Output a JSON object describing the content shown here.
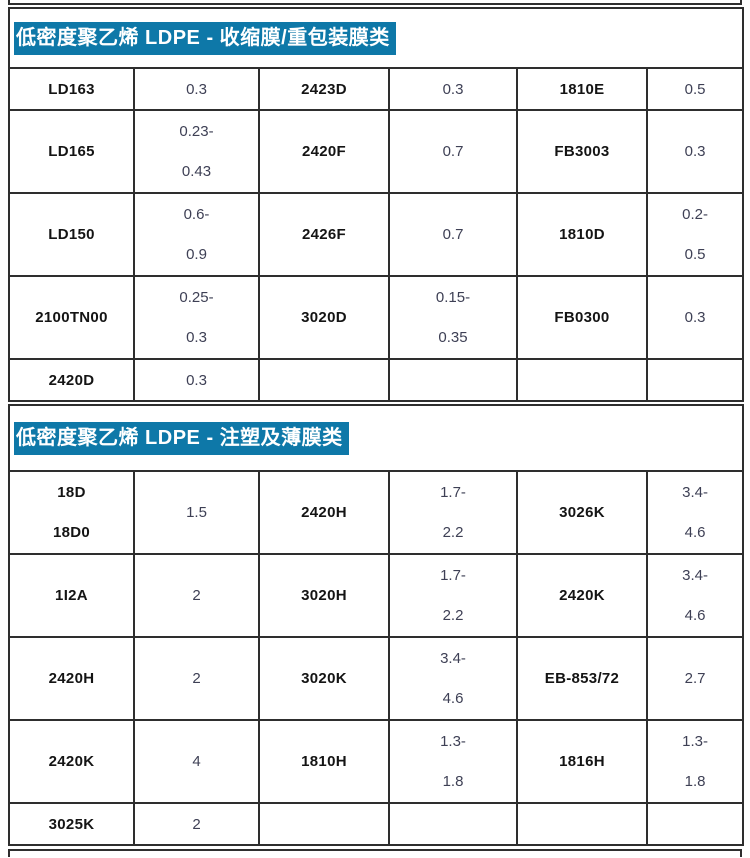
{
  "theme": {
    "highlight_color": "#0e78a8",
    "title_text_color": "#ffffff",
    "border_color": "#2e2e2e",
    "name_text_color": "#141414",
    "value_text_color": "#3e4055",
    "background": "#ffffff"
  },
  "sections": [
    {
      "title": "低密度聚乙烯  LDPE - 收缩膜/重包装膜类",
      "rows": [
        [
          {
            "type": "name",
            "lines": [
              "LD163"
            ]
          },
          {
            "type": "value",
            "lines": [
              "0.3"
            ]
          },
          {
            "type": "name",
            "lines": [
              "2423D"
            ]
          },
          {
            "type": "value",
            "lines": [
              "0.3"
            ]
          },
          {
            "type": "name",
            "lines": [
              "1810E"
            ]
          },
          {
            "type": "value",
            "lines": [
              "0.5"
            ]
          }
        ],
        [
          {
            "type": "name",
            "lines": [
              "LD165"
            ]
          },
          {
            "type": "value",
            "lines": [
              "0.23-",
              "0.43"
            ]
          },
          {
            "type": "name",
            "lines": [
              "2420F"
            ]
          },
          {
            "type": "value",
            "lines": [
              "0.7"
            ]
          },
          {
            "type": "name",
            "lines": [
              "FB3003"
            ]
          },
          {
            "type": "value",
            "lines": [
              "0.3"
            ]
          }
        ],
        [
          {
            "type": "name",
            "lines": [
              "LD150"
            ]
          },
          {
            "type": "value",
            "lines": [
              "0.6-",
              "0.9"
            ]
          },
          {
            "type": "name",
            "lines": [
              "2426F"
            ]
          },
          {
            "type": "value",
            "lines": [
              "0.7"
            ]
          },
          {
            "type": "name",
            "lines": [
              "1810D"
            ]
          },
          {
            "type": "value",
            "lines": [
              "0.2-",
              "0.5"
            ]
          }
        ],
        [
          {
            "type": "name",
            "lines": [
              "2100TN00"
            ]
          },
          {
            "type": "value",
            "lines": [
              "0.25-",
              "0.3"
            ]
          },
          {
            "type": "name",
            "lines": [
              "3020D"
            ]
          },
          {
            "type": "value",
            "lines": [
              "0.15-",
              "0.35"
            ]
          },
          {
            "type": "name",
            "lines": [
              "FB0300"
            ]
          },
          {
            "type": "value",
            "lines": [
              "0.3"
            ]
          }
        ],
        [
          {
            "type": "name",
            "lines": [
              "2420D"
            ]
          },
          {
            "type": "value",
            "lines": [
              "0.3"
            ]
          },
          {
            "type": "value",
            "lines": []
          },
          {
            "type": "value",
            "lines": []
          },
          {
            "type": "value",
            "lines": []
          },
          {
            "type": "value",
            "lines": []
          }
        ]
      ]
    },
    {
      "title": "低密度聚乙烯  LDPE - 注塑及薄膜类",
      "rows": [
        [
          {
            "type": "name",
            "lines": [
              "18D",
              "18D0"
            ]
          },
          {
            "type": "value",
            "lines": [
              "1.5"
            ]
          },
          {
            "type": "name",
            "lines": [
              "2420H"
            ]
          },
          {
            "type": "value",
            "lines": [
              "1.7-",
              "2.2"
            ]
          },
          {
            "type": "name",
            "lines": [
              "3026K"
            ]
          },
          {
            "type": "value",
            "lines": [
              "3.4-",
              "4.6"
            ]
          }
        ],
        [
          {
            "type": "name",
            "lines": [
              "1I2A"
            ]
          },
          {
            "type": "value",
            "lines": [
              "2"
            ]
          },
          {
            "type": "name",
            "lines": [
              "3020H"
            ]
          },
          {
            "type": "value",
            "lines": [
              "1.7-",
              "2.2"
            ]
          },
          {
            "type": "name",
            "lines": [
              "2420K"
            ]
          },
          {
            "type": "value",
            "lines": [
              "3.4-",
              "4.6"
            ]
          }
        ],
        [
          {
            "type": "name",
            "lines": [
              "2420H"
            ]
          },
          {
            "type": "value",
            "lines": [
              "2"
            ]
          },
          {
            "type": "name",
            "lines": [
              "3020K"
            ]
          },
          {
            "type": "value",
            "lines": [
              "3.4-",
              "4.6"
            ]
          },
          {
            "type": "name",
            "lines": [
              "EB-853/72"
            ]
          },
          {
            "type": "value",
            "lines": [
              "2.7"
            ]
          }
        ],
        [
          {
            "type": "name",
            "lines": [
              "2420K"
            ]
          },
          {
            "type": "value",
            "lines": [
              "4"
            ]
          },
          {
            "type": "name",
            "lines": [
              "1810H"
            ]
          },
          {
            "type": "value",
            "lines": [
              "1.3-",
              "1.8"
            ]
          },
          {
            "type": "name",
            "lines": [
              "1816H"
            ]
          },
          {
            "type": "value",
            "lines": [
              "1.3-",
              "1.8"
            ]
          }
        ],
        [
          {
            "type": "name",
            "lines": [
              "3025K"
            ]
          },
          {
            "type": "value",
            "lines": [
              "2"
            ]
          },
          {
            "type": "value",
            "lines": []
          },
          {
            "type": "value",
            "lines": []
          },
          {
            "type": "value",
            "lines": []
          },
          {
            "type": "value",
            "lines": []
          }
        ]
      ]
    }
  ]
}
